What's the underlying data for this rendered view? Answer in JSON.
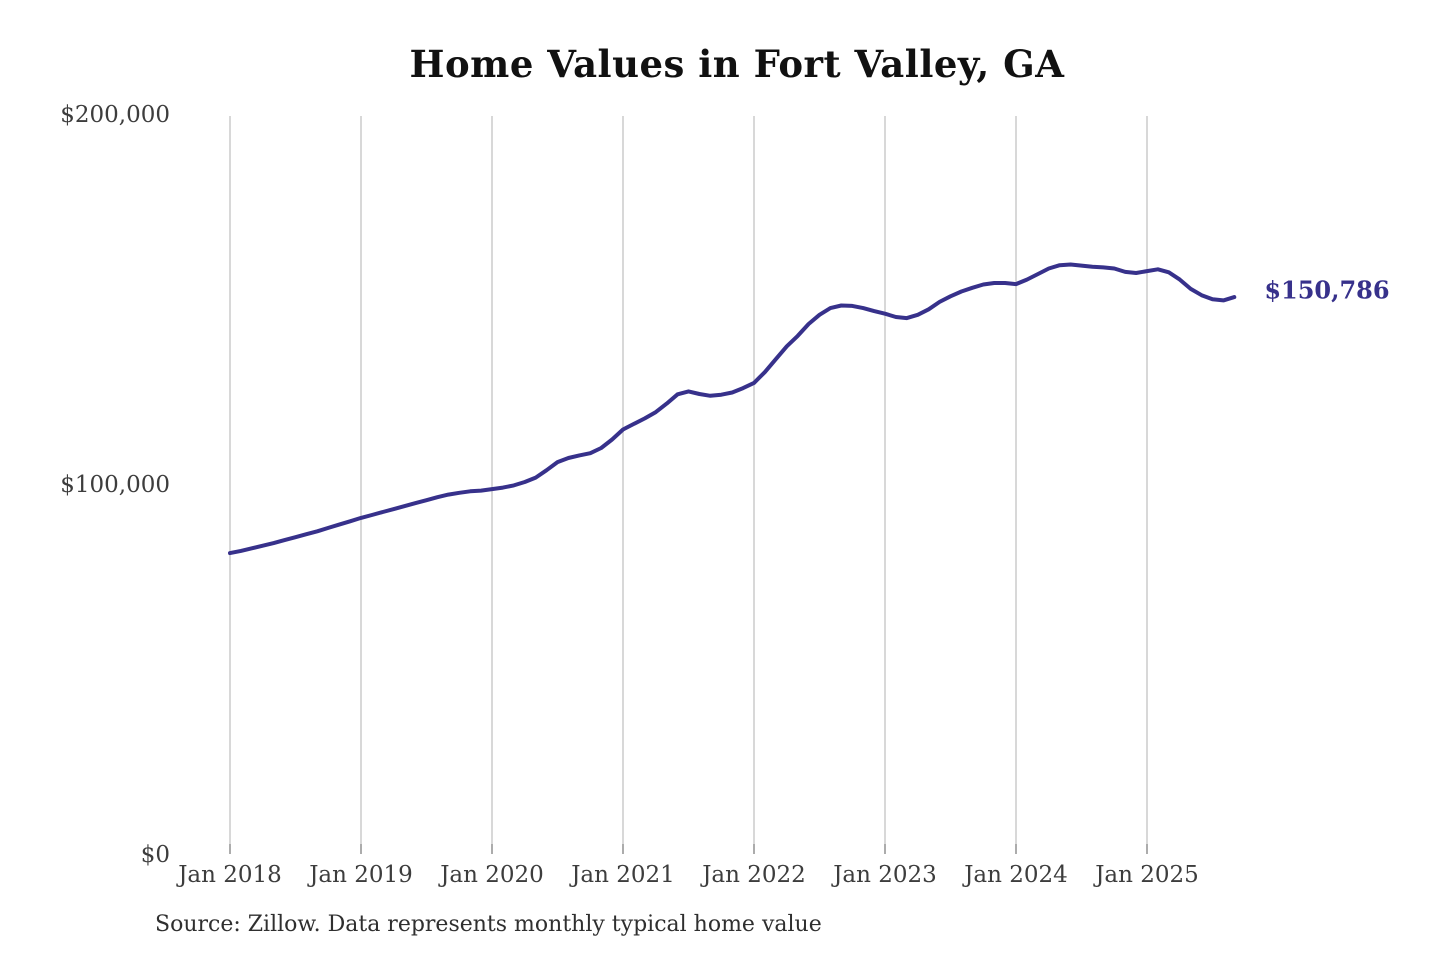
{
  "title": "Home Values in Fort Valley, GA",
  "source_note": "Source: Zillow. Data represents monthly typical home value",
  "end_label": "$150,786",
  "colors": {
    "line": "#37318b",
    "end_label": "#37318b",
    "gridline": "#cccccc",
    "tick": "#999999",
    "axis_text": "#3d3d3d",
    "title_text": "#111111",
    "source_text": "#2f2f2f"
  },
  "y_axis": {
    "ticks": [
      {
        "label": "$200,000",
        "value": 200000
      },
      {
        "label": "$100,000",
        "value": 100000
      },
      {
        "label": "$0",
        "value": 0
      }
    ]
  },
  "x_axis": {
    "ticks": [
      "Jan 2018",
      "Jan 2019",
      "Jan 2020",
      "Jan 2021",
      "Jan 2022",
      "Jan 2023",
      "Jan 2024",
      "Jan 2025"
    ]
  },
  "chart_data": {
    "type": "line",
    "title": "Home Values in Fort Valley, GA",
    "xlabel": "",
    "ylabel": "",
    "ylim": [
      0,
      200000
    ],
    "grid": "vertical-only",
    "legend_position": "none",
    "frequency": "monthly",
    "x_start": "2018-01",
    "x_end": "2025-09",
    "x_tick_labels": [
      "Jan 2018",
      "Jan 2019",
      "Jan 2020",
      "Jan 2021",
      "Jan 2022",
      "Jan 2023",
      "Jan 2024",
      "Jan 2025"
    ],
    "final_value": 150786,
    "final_value_label": "$150,786",
    "series": [
      {
        "name": "Monthly typical home value",
        "values": [
          81600,
          82200,
          82900,
          83600,
          84300,
          85100,
          85900,
          86700,
          87500,
          88400,
          89300,
          90200,
          91100,
          91900,
          92700,
          93500,
          94300,
          95100,
          95900,
          96700,
          97400,
          97900,
          98300,
          98500,
          98900,
          99300,
          99900,
          100800,
          102000,
          104000,
          106200,
          107300,
          108000,
          108600,
          110000,
          112300,
          115000,
          116500,
          118000,
          119700,
          122000,
          124500,
          125300,
          124600,
          124100,
          124400,
          125000,
          126200,
          127600,
          130500,
          134000,
          137500,
          140300,
          143500,
          146000,
          147800,
          148500,
          148400,
          147800,
          147000,
          146300,
          145400,
          145100,
          146000,
          147500,
          149500,
          151000,
          152300,
          153300,
          154200,
          154600,
          154600,
          154300,
          155500,
          157000,
          158500,
          159400,
          159600,
          159300,
          159000,
          158800,
          158500,
          157600,
          157300,
          157800,
          158300,
          157500,
          155500,
          153000,
          151300,
          150200,
          149900,
          150786
        ]
      }
    ]
  }
}
